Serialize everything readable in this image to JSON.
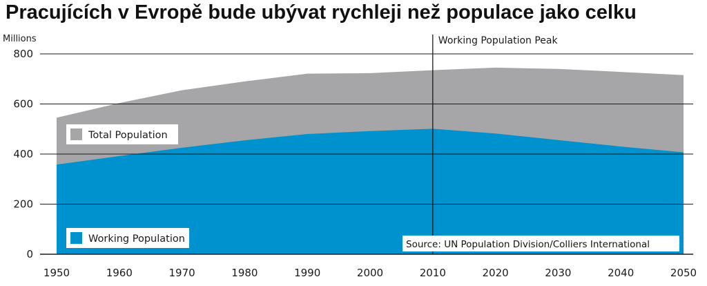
{
  "chart_data": {
    "type": "area",
    "title": "Pracujících v Evropě bude ubývat rychleji než populace jako celku",
    "ylabel": "Millions",
    "xlabel": "",
    "x": [
      1950,
      1960,
      1970,
      1980,
      1990,
      2000,
      2010,
      2020,
      2030,
      2040,
      2050
    ],
    "x_ticks": [
      "1950",
      "1960",
      "1970",
      "1980",
      "1990",
      "2000",
      "2010",
      "2020",
      "2030",
      "2040",
      "2050"
    ],
    "y_ticks": [
      "0",
      "200",
      "400",
      "600",
      "800"
    ],
    "xlim": [
      1950,
      2050
    ],
    "ylim": [
      0,
      800
    ],
    "grid": true,
    "series": [
      {
        "name": "Total Population",
        "color": "#a6a6a8",
        "values": [
          545,
          604,
          655,
          690,
          721,
          723,
          735,
          745,
          740,
          728,
          715
        ]
      },
      {
        "name": "Working Population",
        "color": "#0091cf",
        "values": [
          358,
          392,
          425,
          455,
          480,
          492,
          501,
          482,
          456,
          430,
          407
        ]
      }
    ],
    "annotations": [
      {
        "type": "vline",
        "x": 2010,
        "text": "Working Population Peak"
      }
    ],
    "source": "Source: UN Population Division/Colliers International",
    "legend_placement": "inside-left"
  }
}
